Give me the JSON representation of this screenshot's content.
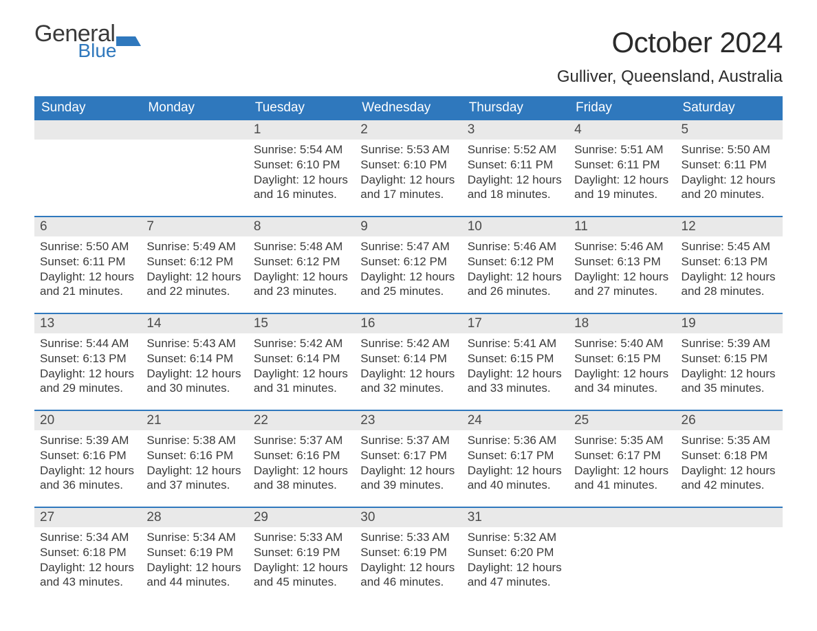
{
  "brand": {
    "word1": "General",
    "word2": "Blue",
    "accent_color": "#2f78bd"
  },
  "title": "October 2024",
  "location": "Gulliver, Queensland, Australia",
  "colors": {
    "header_bg": "#2f78bd",
    "header_fg": "#ffffff",
    "band_bg": "#e9e9e9",
    "rule": "#2f78bd",
    "text": "#3a3a3a",
    "page_bg": "#ffffff"
  },
  "fonts": {
    "family": "Arial",
    "title_pt": 42,
    "location_pt": 24,
    "dow_pt": 19,
    "daynum_pt": 19,
    "body_pt": 17
  },
  "day_names": [
    "Sunday",
    "Monday",
    "Tuesday",
    "Wednesday",
    "Thursday",
    "Friday",
    "Saturday"
  ],
  "labels": {
    "sunrise": "Sunrise:",
    "sunset": "Sunset:",
    "daylight": "Daylight:"
  },
  "weeks": [
    [
      null,
      null,
      {
        "n": "1",
        "sunrise": "5:54 AM",
        "sunset": "6:10 PM",
        "daylight": "12 hours and 16 minutes."
      },
      {
        "n": "2",
        "sunrise": "5:53 AM",
        "sunset": "6:10 PM",
        "daylight": "12 hours and 17 minutes."
      },
      {
        "n": "3",
        "sunrise": "5:52 AM",
        "sunset": "6:11 PM",
        "daylight": "12 hours and 18 minutes."
      },
      {
        "n": "4",
        "sunrise": "5:51 AM",
        "sunset": "6:11 PM",
        "daylight": "12 hours and 19 minutes."
      },
      {
        "n": "5",
        "sunrise": "5:50 AM",
        "sunset": "6:11 PM",
        "daylight": "12 hours and 20 minutes."
      }
    ],
    [
      {
        "n": "6",
        "sunrise": "5:50 AM",
        "sunset": "6:11 PM",
        "daylight": "12 hours and 21 minutes."
      },
      {
        "n": "7",
        "sunrise": "5:49 AM",
        "sunset": "6:12 PM",
        "daylight": "12 hours and 22 minutes."
      },
      {
        "n": "8",
        "sunrise": "5:48 AM",
        "sunset": "6:12 PM",
        "daylight": "12 hours and 23 minutes."
      },
      {
        "n": "9",
        "sunrise": "5:47 AM",
        "sunset": "6:12 PM",
        "daylight": "12 hours and 25 minutes."
      },
      {
        "n": "10",
        "sunrise": "5:46 AM",
        "sunset": "6:12 PM",
        "daylight": "12 hours and 26 minutes."
      },
      {
        "n": "11",
        "sunrise": "5:46 AM",
        "sunset": "6:13 PM",
        "daylight": "12 hours and 27 minutes."
      },
      {
        "n": "12",
        "sunrise": "5:45 AM",
        "sunset": "6:13 PM",
        "daylight": "12 hours and 28 minutes."
      }
    ],
    [
      {
        "n": "13",
        "sunrise": "5:44 AM",
        "sunset": "6:13 PM",
        "daylight": "12 hours and 29 minutes."
      },
      {
        "n": "14",
        "sunrise": "5:43 AM",
        "sunset": "6:14 PM",
        "daylight": "12 hours and 30 minutes."
      },
      {
        "n": "15",
        "sunrise": "5:42 AM",
        "sunset": "6:14 PM",
        "daylight": "12 hours and 31 minutes."
      },
      {
        "n": "16",
        "sunrise": "5:42 AM",
        "sunset": "6:14 PM",
        "daylight": "12 hours and 32 minutes."
      },
      {
        "n": "17",
        "sunrise": "5:41 AM",
        "sunset": "6:15 PM",
        "daylight": "12 hours and 33 minutes."
      },
      {
        "n": "18",
        "sunrise": "5:40 AM",
        "sunset": "6:15 PM",
        "daylight": "12 hours and 34 minutes."
      },
      {
        "n": "19",
        "sunrise": "5:39 AM",
        "sunset": "6:15 PM",
        "daylight": "12 hours and 35 minutes."
      }
    ],
    [
      {
        "n": "20",
        "sunrise": "5:39 AM",
        "sunset": "6:16 PM",
        "daylight": "12 hours and 36 minutes."
      },
      {
        "n": "21",
        "sunrise": "5:38 AM",
        "sunset": "6:16 PM",
        "daylight": "12 hours and 37 minutes."
      },
      {
        "n": "22",
        "sunrise": "5:37 AM",
        "sunset": "6:16 PM",
        "daylight": "12 hours and 38 minutes."
      },
      {
        "n": "23",
        "sunrise": "5:37 AM",
        "sunset": "6:17 PM",
        "daylight": "12 hours and 39 minutes."
      },
      {
        "n": "24",
        "sunrise": "5:36 AM",
        "sunset": "6:17 PM",
        "daylight": "12 hours and 40 minutes."
      },
      {
        "n": "25",
        "sunrise": "5:35 AM",
        "sunset": "6:17 PM",
        "daylight": "12 hours and 41 minutes."
      },
      {
        "n": "26",
        "sunrise": "5:35 AM",
        "sunset": "6:18 PM",
        "daylight": "12 hours and 42 minutes."
      }
    ],
    [
      {
        "n": "27",
        "sunrise": "5:34 AM",
        "sunset": "6:18 PM",
        "daylight": "12 hours and 43 minutes."
      },
      {
        "n": "28",
        "sunrise": "5:34 AM",
        "sunset": "6:19 PM",
        "daylight": "12 hours and 44 minutes."
      },
      {
        "n": "29",
        "sunrise": "5:33 AM",
        "sunset": "6:19 PM",
        "daylight": "12 hours and 45 minutes."
      },
      {
        "n": "30",
        "sunrise": "5:33 AM",
        "sunset": "6:19 PM",
        "daylight": "12 hours and 46 minutes."
      },
      {
        "n": "31",
        "sunrise": "5:32 AM",
        "sunset": "6:20 PM",
        "daylight": "12 hours and 47 minutes."
      },
      null,
      null
    ]
  ]
}
